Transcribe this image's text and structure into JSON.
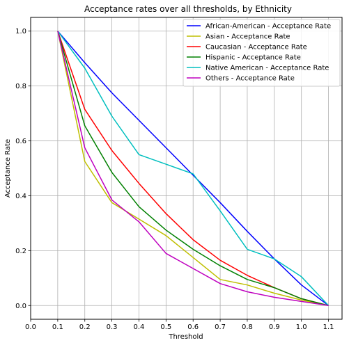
{
  "chart_data": {
    "type": "line",
    "title": "Acceptance rates over all thresholds, by Ethnicity",
    "xlabel": "Threshold",
    "ylabel": "Acceptance Rate",
    "xlim": [
      0.0,
      1.15
    ],
    "ylim": [
      -0.05,
      1.05
    ],
    "xticks": [
      "0.0",
      "0.1",
      "0.2",
      "0.3",
      "0.4",
      "0.5",
      "0.6",
      "0.7",
      "0.8",
      "0.9",
      "1.0",
      "1.1"
    ],
    "yticks": [
      "0.0",
      "0.2",
      "0.4",
      "0.6",
      "0.8",
      "1.0"
    ],
    "grid": true,
    "legend_position": "top-right",
    "x": [
      0.1,
      0.2,
      0.3,
      0.4,
      0.5,
      0.6,
      0.7,
      0.8,
      0.9,
      1.0,
      1.1
    ],
    "series": [
      {
        "name": "African-American - Acceptance Rate",
        "color": "#0000ff",
        "values": [
          1.0,
          0.885,
          0.775,
          0.675,
          0.575,
          0.475,
          0.375,
          0.27,
          0.17,
          0.075,
          0.0
        ]
      },
      {
        "name": "Asian - Acceptance Rate",
        "color": "#bfbf00",
        "values": [
          1.0,
          0.525,
          0.375,
          0.315,
          0.255,
          0.175,
          0.095,
          0.075,
          0.045,
          0.02,
          0.0
        ]
      },
      {
        "name": "Caucasian - Acceptance Rate",
        "color": "#ff0000",
        "values": [
          1.0,
          0.715,
          0.565,
          0.445,
          0.335,
          0.24,
          0.165,
          0.11,
          0.065,
          0.025,
          0.0
        ]
      },
      {
        "name": "Hispanic - Acceptance Rate",
        "color": "#008000",
        "values": [
          1.0,
          0.655,
          0.485,
          0.36,
          0.275,
          0.205,
          0.145,
          0.095,
          0.065,
          0.025,
          0.0
        ]
      },
      {
        "name": "Native American - Acceptance Rate",
        "color": "#00bfbf",
        "values": [
          1.0,
          0.865,
          0.69,
          0.55,
          0.515,
          0.48,
          0.345,
          0.205,
          0.17,
          0.105,
          0.0
        ]
      },
      {
        "name": "Others - Acceptance Rate",
        "color": "#bf00bf",
        "values": [
          1.0,
          0.575,
          0.385,
          0.305,
          0.19,
          0.135,
          0.08,
          0.05,
          0.03,
          0.015,
          0.0
        ]
      }
    ]
  }
}
